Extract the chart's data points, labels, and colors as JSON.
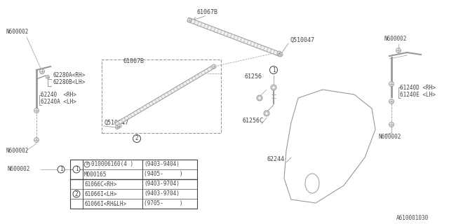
{
  "background_color": "#ffffff",
  "line_color": "#999999",
  "dark_color": "#444444",
  "footnote": "A610001030",
  "parts": {
    "top_rod_label": "61067B",
    "q510047_top": "Q510047",
    "p61256": "61256",
    "p61256c": "61256C",
    "p62244": "62244",
    "n600002_tl": "N600002",
    "p62280a": "62280A<RH>",
    "p62280b": "62280B<LH>",
    "p62240": "62240  <RH>",
    "p62240a": "62240A <LH>",
    "n600002_bl": "N600002",
    "p61067b_box": "61067B",
    "q510047_box": "Q510047",
    "n600002_rt": "N600002",
    "p61240d": "61240D <RH>",
    "p61240e": "61240E <LH>",
    "n600002_rb": "N600002"
  },
  "table": {
    "rows": [
      {
        "part": "010006160(4 )",
        "date": "(9403-9404)"
      },
      {
        "part": "M000165",
        "date": "(9405-     )"
      },
      {
        "part": "61066C<RH>",
        "date": "(9403-9704)"
      },
      {
        "part": "61066I<LH>",
        "date": "(9403-9704)"
      },
      {
        "part": "61066I<RH&LH>",
        "date": "(9705-     )"
      }
    ]
  }
}
